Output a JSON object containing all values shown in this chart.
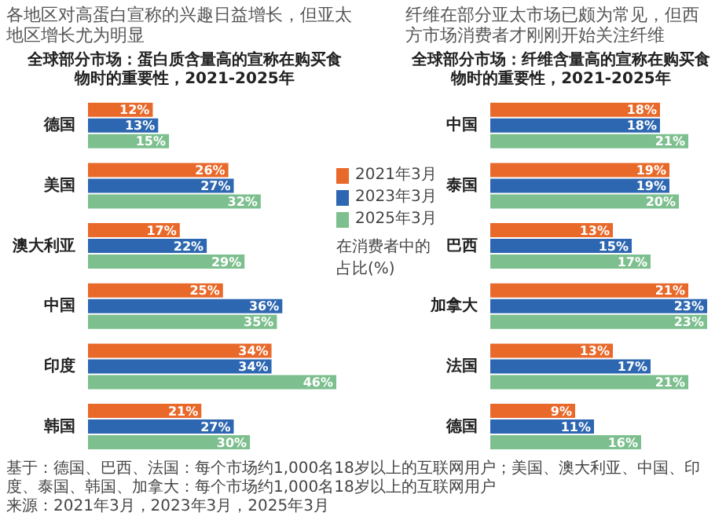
{
  "chart_data": [
    {
      "type": "bar",
      "orientation": "horizontal",
      "title": "各地区对高蛋白宣称的兴趣日益增长，但亚太地区增长尤为明显",
      "subtitle": "全球部分市场：蛋白质含量高的宣称在购买食物时的重要性，2021-2025年",
      "categories": [
        "德国",
        "美国",
        "澳大利亚",
        "中国",
        "印度",
        "韩国"
      ],
      "tick_labels": "y",
      "legend": "right",
      "legend_title": "在消费者中的占比(%)",
      "series": [
        {
          "name": "2021年3月",
          "color": "#e8692a",
          "values": [
            12,
            26,
            17,
            25,
            34,
            21
          ],
          "value_labels": [
            "12%",
            "26%",
            "17%",
            "25%",
            "34%",
            "21%"
          ]
        },
        {
          "name": "2023年3月",
          "color": "#2e67b1",
          "values": [
            13,
            27,
            22,
            36,
            34,
            27
          ],
          "value_labels": [
            "13%",
            "27%",
            "22%",
            "36%",
            "34%",
            "27%"
          ]
        },
        {
          "name": "2025年3月",
          "color": "#7dbf8e",
          "values": [
            15,
            32,
            29,
            35,
            46,
            30
          ],
          "value_labels": [
            "15%",
            "32%",
            "29%",
            "35%",
            "46%",
            "30%"
          ]
        }
      ],
      "annotations": [
        "基于：德国、巴西、法国：每个市场约1,000名18岁以上的互联网用户；美国、澳大利亚、中国、印度、泰国、韩国、加拿大：每个市场约1,000名18岁以上的互联网用户",
        "来源：2021年3月，2023年3月，2025年3月"
      ]
    },
    {
      "type": "bar",
      "orientation": "horizontal",
      "title": "纤维在部分亚太市场已颇为常见，但西方市场消费者才刚刚开始关注纤维",
      "subtitle": "全球部分市场：纤维含量高的宣称在购买食物时的重要性，2021-2025年",
      "categories": [
        "中国",
        "泰国",
        "巴西",
        "加拿大",
        "法国",
        "德国"
      ],
      "tick_labels": "y",
      "series": [
        {
          "color": "#e8692a",
          "values": [
            18,
            19,
            13,
            21,
            13,
            9
          ],
          "value_labels": [
            "18%",
            "19%",
            "13%",
            "21%",
            "13%",
            "9%"
          ]
        },
        {
          "color": "#2e67b1",
          "values": [
            18,
            19,
            15,
            23,
            17,
            11
          ],
          "value_labels": [
            "18%",
            "19%",
            "15%",
            "23%",
            "17%",
            "11%"
          ]
        },
        {
          "color": "#7dbf8e",
          "values": [
            21,
            20,
            17,
            23,
            21,
            16
          ],
          "value_labels": [
            "21%",
            "20%",
            "17%",
            "23%",
            "21%",
            "16%"
          ]
        }
      ]
    }
  ]
}
